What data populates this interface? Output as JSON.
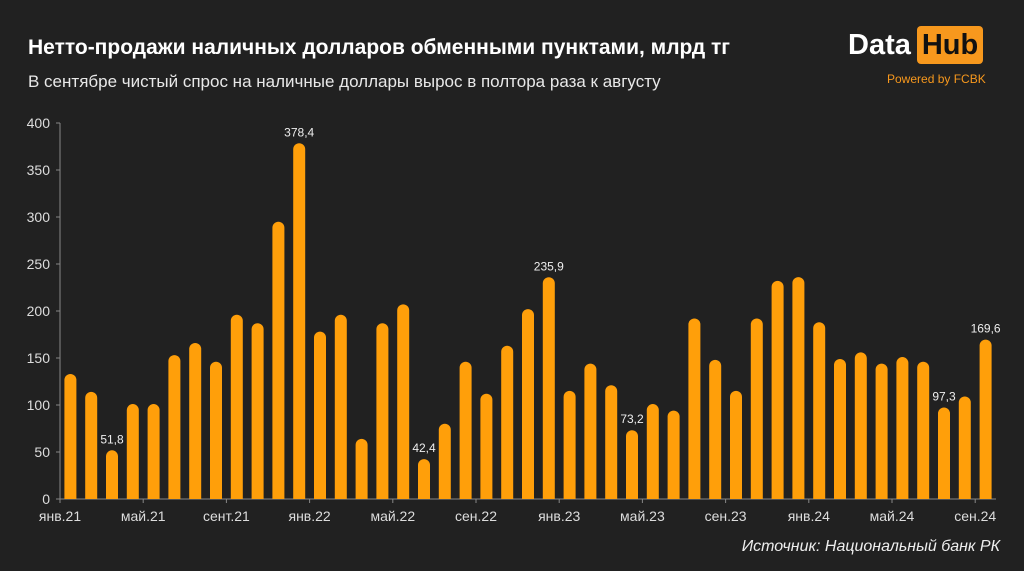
{
  "header": {
    "title": "Нетто-продажи наличных долларов обменными пунктами, млрд тг",
    "subtitle": "В сентябре чистый спрос на наличные доллары вырос в полтора раза к августу"
  },
  "logo": {
    "word1": "Data",
    "word2": "Hub",
    "powered": "Powered by FCBK"
  },
  "source": "Источник: Национальный банк РК",
  "colors": {
    "bar": "#ff9f0a",
    "background": "#212121",
    "accent": "#f7981d"
  },
  "chart_data": {
    "type": "bar",
    "title": "Нетто-продажи наличных долларов обменными пунктами, млрд тг",
    "xlabel": "",
    "ylabel": "млрд тг",
    "ylim": [
      0,
      400
    ],
    "yticks": [
      "0",
      "50",
      "100",
      "150",
      "200",
      "250",
      "300",
      "350",
      "400"
    ],
    "xtick_labels": [
      {
        "index": 0,
        "label": "янв.21"
      },
      {
        "index": 4,
        "label": "май.21"
      },
      {
        "index": 8,
        "label": "сент.21"
      },
      {
        "index": 12,
        "label": "янв.22"
      },
      {
        "index": 16,
        "label": "май.22"
      },
      {
        "index": 20,
        "label": "сен.22"
      },
      {
        "index": 24,
        "label": "янв.23"
      },
      {
        "index": 28,
        "label": "май.23"
      },
      {
        "index": 32,
        "label": "сен.23"
      },
      {
        "index": 36,
        "label": "янв.24"
      },
      {
        "index": 40,
        "label": "май.24"
      },
      {
        "index": 44,
        "label": "сен.24"
      }
    ],
    "values": [
      133,
      114,
      51.8,
      101,
      101,
      153,
      166,
      146,
      196,
      187,
      295,
      378.4,
      178,
      196,
      64,
      187,
      207,
      42.4,
      80,
      146,
      112,
      163,
      202,
      235.9,
      115,
      144,
      121,
      73.2,
      101,
      94,
      192,
      148,
      115,
      192,
      232,
      236,
      188,
      149,
      156,
      144,
      151,
      146,
      97.3,
      109,
      169.6
    ],
    "data_labels": [
      {
        "index": 2,
        "label": "51,8"
      },
      {
        "index": 11,
        "label": "378,4"
      },
      {
        "index": 17,
        "label": "42,4"
      },
      {
        "index": 23,
        "label": "235,9"
      },
      {
        "index": 27,
        "label": "73,2"
      },
      {
        "index": 42,
        "label": "97,3"
      },
      {
        "index": 44,
        "label": "169,6"
      }
    ],
    "grid": false
  }
}
